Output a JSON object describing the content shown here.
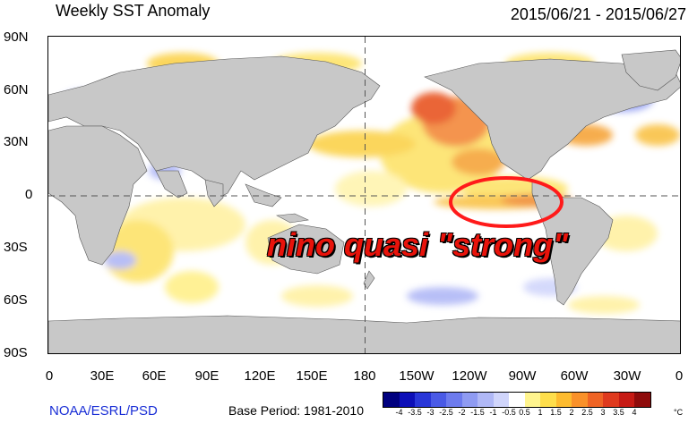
{
  "header": {
    "title": "Weekly SST Anomaly",
    "date_range": "2015/06/21 - 2015/06/27"
  },
  "map": {
    "lat_labels": [
      "90N",
      "60N",
      "30N",
      "0",
      "30S",
      "60S",
      "90S"
    ],
    "lon_labels": [
      "0",
      "30E",
      "60E",
      "90E",
      "120E",
      "150E",
      "180",
      "150W",
      "120W",
      "90W",
      "60W",
      "30W",
      "0"
    ],
    "land_color": "#c8c8c8",
    "highlight_ellipse_color": "#ff1a1a"
  },
  "annotation": {
    "text": "nino quasi \"strong\"",
    "color": "#e8130b"
  },
  "footer": {
    "credit": "NOAA/ESRL/PSD",
    "base_period": "Base Period: 1981-2010"
  },
  "colorbar": {
    "unit": "°C",
    "ticks": [
      "-4",
      "-3.5",
      "-3",
      "-2.5",
      "-2",
      "-1.5",
      "-1",
      "-0.5",
      "0.5",
      "1",
      "1.5",
      "2",
      "2.5",
      "3",
      "3.5",
      "4"
    ],
    "colors": [
      "#00007f",
      "#0d0fb8",
      "#2936d8",
      "#4a5ae6",
      "#6d7bee",
      "#8f9bf2",
      "#b0b8f6",
      "#d0d5fb",
      "#ffffff",
      "#fff48e",
      "#fede4b",
      "#fdbb2f",
      "#f9912a",
      "#ef6425",
      "#df3a1e",
      "#c61a14",
      "#8e0b0b"
    ]
  }
}
